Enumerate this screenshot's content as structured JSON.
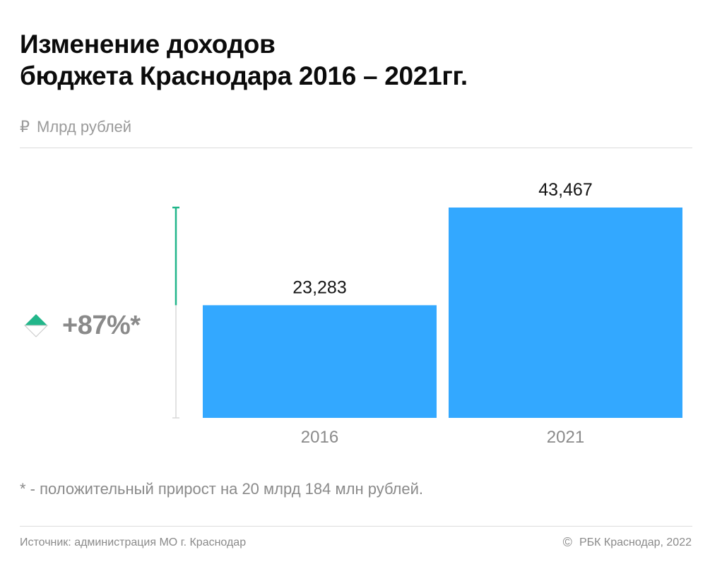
{
  "title_line1": "Изменение доходов",
  "title_line2": "бюджета Краснодара 2016 – 2021гг.",
  "unit_icon": "₽",
  "unit_label": "Млрд рублей",
  "growth_label": "+87%*",
  "footnote": "* - положительный прирост на 20 млрд 184 млн рублей.",
  "source": "Источник: администрация МО г. Краснодар",
  "copyright_icon": "©",
  "copyright": "РБК Краснодар, 2022",
  "colors": {
    "bar": "#33a8ff",
    "accent_green": "#22b68a",
    "axis_gray": "#d9d9d9",
    "text_gray": "#8a8a8a"
  },
  "chart_data": {
    "type": "bar",
    "categories": [
      "2016",
      "2021"
    ],
    "values": [
      23.283,
      43.467
    ],
    "value_labels": [
      "23,283",
      "43,467"
    ],
    "ylim": [
      0,
      43.467
    ],
    "grid": false,
    "title": "Изменение доходов бюджета Краснодара 2016 – 2021гг.",
    "ylabel": "Млрд рублей"
  }
}
